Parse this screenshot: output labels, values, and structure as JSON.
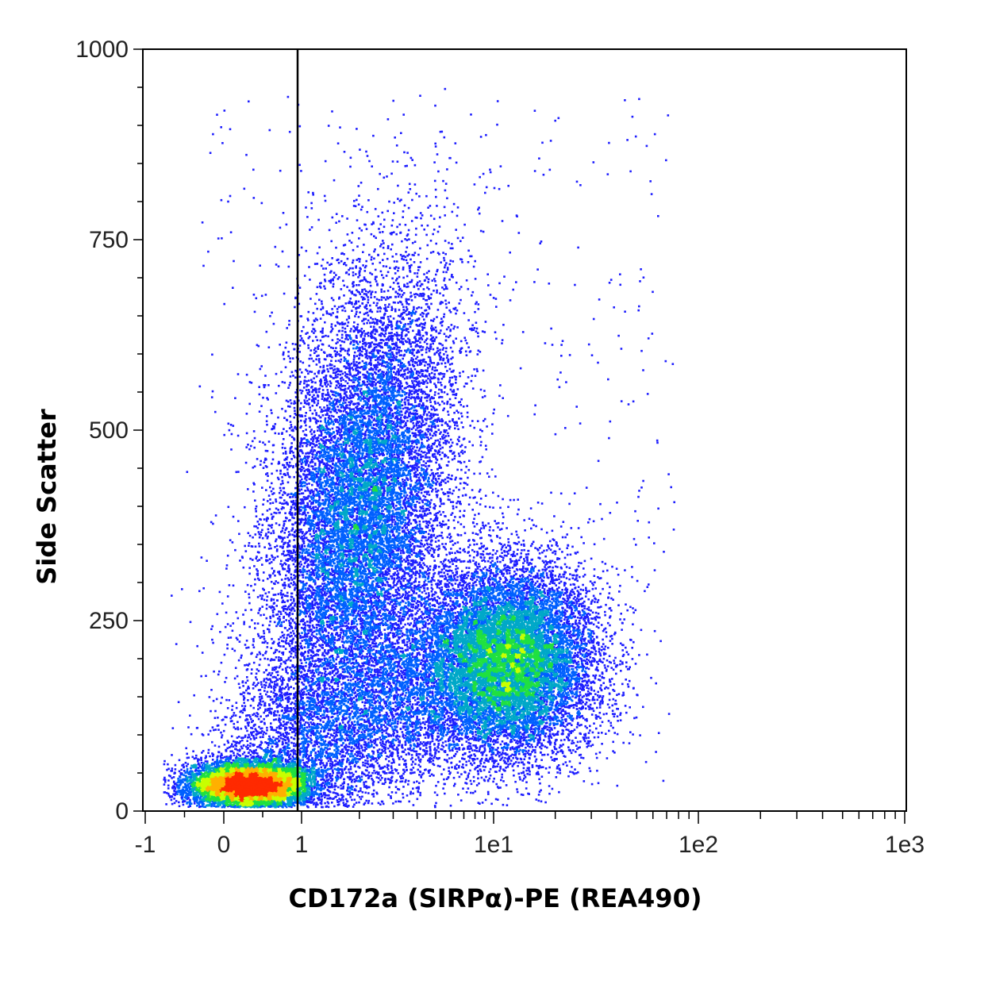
{
  "chart_data": {
    "type": "scatter",
    "title": "",
    "xlabel": "CD172a (SIRPα)-PE (REA490)",
    "ylabel": "Side Scatter",
    "x_scale": "biexponential",
    "x_ticks": [
      "-1",
      "0",
      "1",
      "1e1",
      "1e2",
      "1e3"
    ],
    "y_ticks": [
      "0",
      "250",
      "500",
      "750",
      "1000"
    ],
    "ylim": [
      0,
      1000
    ],
    "grid": false,
    "gate_x": 1,
    "colormap": [
      "#0000ff",
      "#00a0ff",
      "#00ff40",
      "#ffff00",
      "#ff2000"
    ],
    "populations": [
      {
        "name_hidden": true,
        "x_center": 0.3,
        "y_center": 40,
        "density": "very high"
      },
      {
        "name_hidden": true,
        "x_center": 1.8,
        "y_center": 400,
        "density": "high"
      },
      {
        "name_hidden": true,
        "x_center": 10,
        "y_center": 190,
        "density": "medium"
      }
    ]
  }
}
